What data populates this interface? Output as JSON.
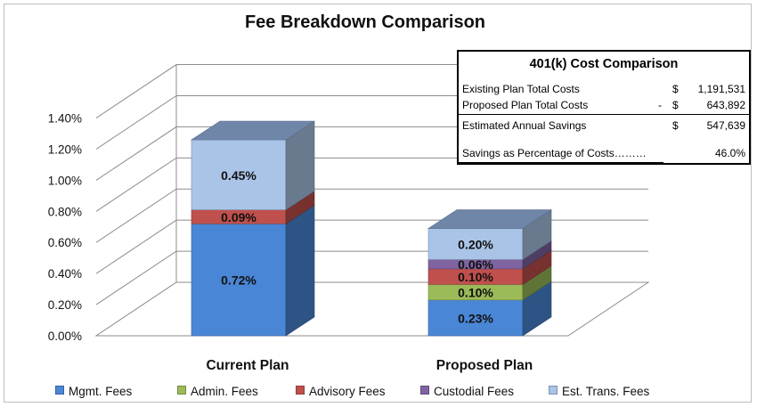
{
  "chart_data": {
    "type": "bar",
    "stacked": true,
    "three_d": true,
    "title": "Fee Breakdown Comparison",
    "categories": [
      "Current Plan",
      "Proposed Plan"
    ],
    "ylim": [
      0,
      1.4
    ],
    "ytick_labels": [
      "0.00%",
      "0.20%",
      "0.40%",
      "0.60%",
      "0.80%",
      "1.00%",
      "1.20%",
      "1.40%"
    ],
    "ytick_values": [
      0,
      0.2,
      0.4,
      0.6,
      0.8,
      1.0,
      1.2,
      1.4
    ],
    "grid": true,
    "legend_position": "bottom",
    "series": [
      {
        "name": "Mgmt. Fees",
        "color": "#4a86d6",
        "values": [
          0.72,
          0.23
        ],
        "labels": [
          "0.72%",
          "0.23%"
        ]
      },
      {
        "name": "Admin. Fees",
        "color": "#9bbb59",
        "values": [
          0,
          0.1
        ],
        "labels": [
          "",
          "0.10%"
        ]
      },
      {
        "name": "Advisory Fees",
        "color": "#c0504d",
        "values": [
          0.09,
          0.1
        ],
        "labels": [
          "0.09%",
          "0.10%"
        ]
      },
      {
        "name": "Custodial Fees",
        "color": "#8064a2",
        "values": [
          0,
          0.06
        ],
        "labels": [
          "",
          "0.06%"
        ]
      },
      {
        "name": "Est. Trans. Fees",
        "color": "#a9c4e6",
        "values": [
          0.45,
          0.2
        ],
        "labels": [
          "0.45%",
          "0.20%"
        ]
      }
    ]
  },
  "cost_comparison": {
    "title": "401(k) Cost Comparison",
    "rows": [
      {
        "label": "Existing Plan Total Costs",
        "dash": "",
        "currency": "$",
        "value": "1,191,531"
      },
      {
        "label": "Proposed Plan Total Costs",
        "dash": "-",
        "currency": "$",
        "value": "643,892"
      },
      {
        "label": "Estimated Annual Savings",
        "dash": "",
        "currency": "$",
        "value": "547,639"
      },
      {
        "label": "Savings as Percentage of Costs………",
        "dash": "",
        "currency": "",
        "value": "46.0%"
      }
    ]
  }
}
